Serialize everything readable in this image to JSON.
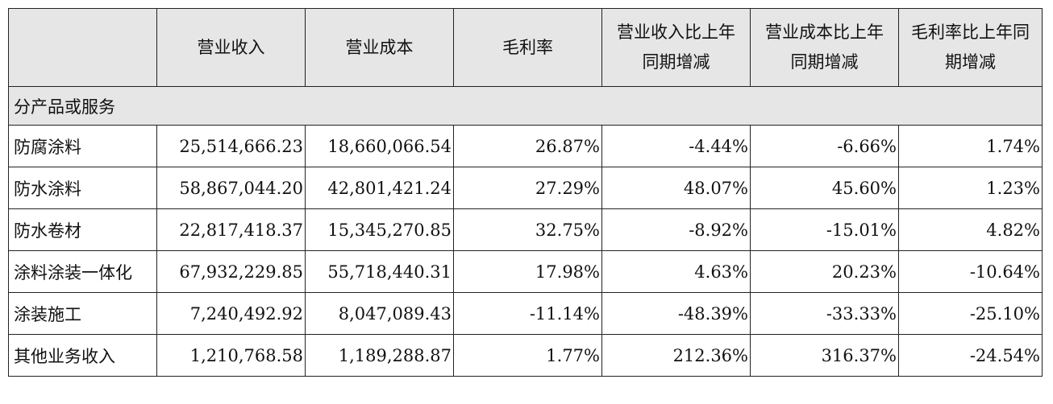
{
  "headers": {
    "blank": "",
    "revenue": "营业收入",
    "cost": "营业成本",
    "margin": "毛利率",
    "revenue_change": [
      "营业收入比上年",
      "同期增减"
    ],
    "cost_change": [
      "营业成本比上年",
      "同期增减"
    ],
    "margin_change": [
      "毛利率比上年同",
      "期增减"
    ]
  },
  "section_label": "分产品或服务",
  "rows": [
    {
      "name": "防腐涂料",
      "revenue": "25,514,666.23",
      "cost": "18,660,066.54",
      "margin": "26.87%",
      "revenue_change": "-4.44%",
      "cost_change": "-6.66%",
      "margin_change": "1.74%"
    },
    {
      "name": "防水涂料",
      "revenue": "58,867,044.20",
      "cost": "42,801,421.24",
      "margin": "27.29%",
      "revenue_change": "48.07%",
      "cost_change": "45.60%",
      "margin_change": "1.23%"
    },
    {
      "name": "防水卷材",
      "revenue": "22,817,418.37",
      "cost": "15,345,270.85",
      "margin": "32.75%",
      "revenue_change": "-8.92%",
      "cost_change": "-15.01%",
      "margin_change": "4.82%"
    },
    {
      "name": "涂料涂装一体化",
      "revenue": "67,932,229.85",
      "cost": "55,718,440.31",
      "margin": "17.98%",
      "revenue_change": "4.63%",
      "cost_change": "20.23%",
      "margin_change": "-10.64%"
    },
    {
      "name": "涂装施工",
      "revenue": "7,240,492.92",
      "cost": "8,047,089.43",
      "margin": "-11.14%",
      "revenue_change": "-48.39%",
      "cost_change": "-33.33%",
      "margin_change": "-25.10%"
    },
    {
      "name": "其他业务收入",
      "revenue": "1,210,768.58",
      "cost": "1,189,288.87",
      "margin": "1.77%",
      "revenue_change": "212.36%",
      "cost_change": "316.37%",
      "margin_change": "-24.54%"
    }
  ]
}
